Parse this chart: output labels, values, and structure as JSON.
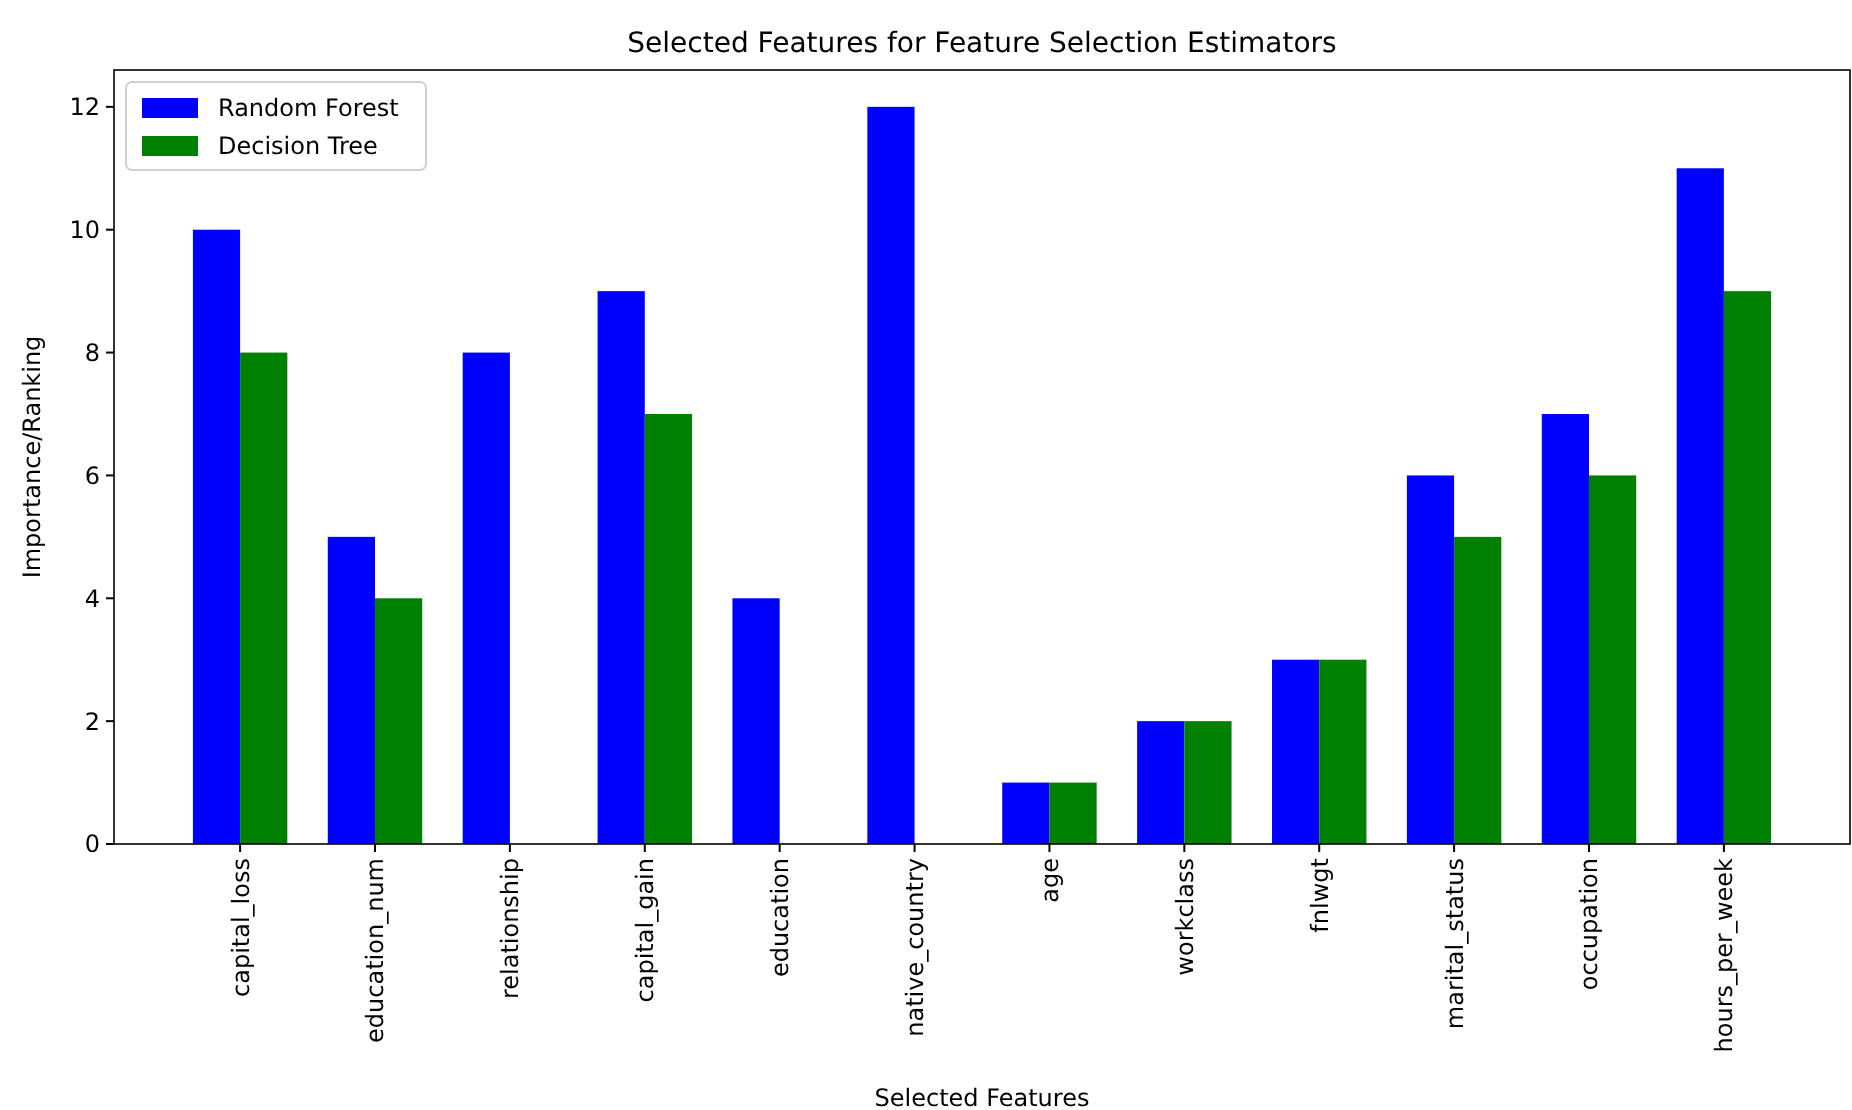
{
  "chart_data": {
    "type": "bar",
    "title": "Selected Features for Feature Selection Estimators",
    "xlabel": "Selected Features",
    "ylabel": "Importance/Ranking",
    "categories": [
      "capital_loss",
      "education_num",
      "relationship",
      "capital_gain",
      "education",
      "native_country",
      "age",
      "workclass",
      "fnlwgt",
      "marital_status",
      "occupation",
      "hours_per_week"
    ],
    "series": [
      {
        "name": "Random Forest",
        "color": "#0000ff",
        "values": [
          10,
          5,
          8,
          9,
          4,
          12,
          1,
          2,
          3,
          6,
          7,
          11
        ]
      },
      {
        "name": "Decision Tree",
        "color": "#008000",
        "values": [
          8,
          4,
          null,
          7,
          null,
          null,
          1,
          2,
          3,
          5,
          6,
          9
        ]
      }
    ],
    "ylim": [
      0,
      12.6
    ],
    "yticks": [
      0,
      2,
      4,
      6,
      8,
      10,
      12
    ],
    "legend": "top left",
    "grid": false
  }
}
